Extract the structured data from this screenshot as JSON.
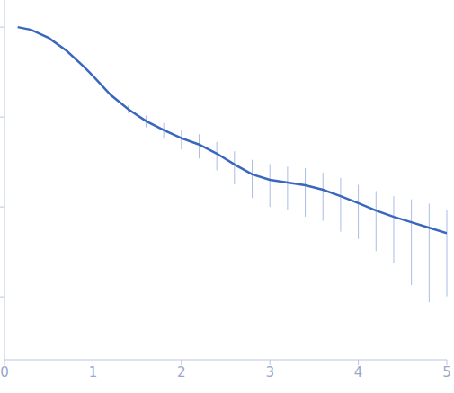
{
  "chart_data": {
    "type": "line",
    "x": [
      0.15,
      0.3,
      0.5,
      0.7,
      0.9,
      1.0,
      1.2,
      1.4,
      1.6,
      1.8,
      2.0,
      2.2,
      2.4,
      2.6,
      2.8,
      3.0,
      3.2,
      3.4,
      3.6,
      3.8,
      4.0,
      4.2,
      4.4,
      4.6,
      4.8,
      5.0
    ],
    "values": [
      1.0,
      0.933,
      0.758,
      0.548,
      0.361,
      0.287,
      0.176,
      0.122,
      0.0902,
      0.0715,
      0.0581,
      0.0494,
      0.0392,
      0.0297,
      0.023,
      0.02,
      0.0187,
      0.0174,
      0.0155,
      0.0132,
      0.011,
      0.00912,
      0.00775,
      0.00675,
      0.00587,
      0.00511
    ],
    "errors": [
      0.01,
      0.0093,
      0.0076,
      0.0055,
      0.0036,
      0.0029,
      0.0088,
      0.0122,
      0.0135,
      0.0143,
      0.0145,
      0.0148,
      0.0137,
      0.0119,
      0.0104,
      0.01,
      0.0094,
      0.0096,
      0.0085,
      0.0079,
      0.0066,
      0.0059,
      0.0054,
      0.0054,
      0.005,
      0.0041
    ],
    "color": "#3a67be",
    "xlim": [
      0,
      5
    ],
    "xticks": [
      0,
      1,
      2,
      3,
      4,
      5
    ],
    "ylim": [
      0.0002,
      2
    ],
    "yticks": [
      0.001,
      0.01,
      0.1,
      1
    ],
    "log": "y",
    "tick_labels": "x",
    "grid": false
  }
}
